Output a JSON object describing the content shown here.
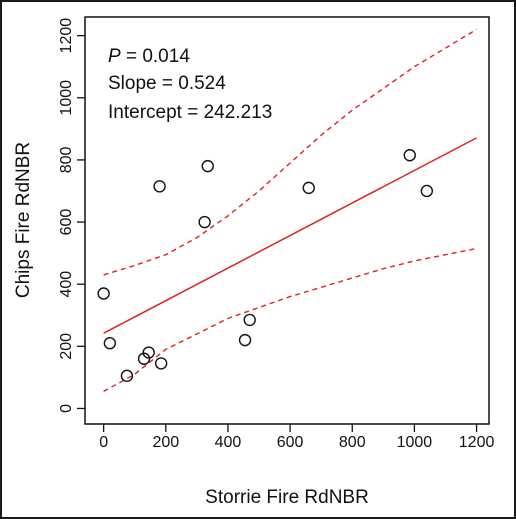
{
  "chart_data": {
    "type": "scatter",
    "xlabel": "Storrie Fire RdNBR",
    "ylabel": "Chips Fire RdNBR",
    "xlim": [
      -60,
      1240
    ],
    "ylim": [
      -50,
      1260
    ],
    "xticks": [
      0,
      200,
      400,
      600,
      800,
      1000,
      1200
    ],
    "yticks": [
      0,
      200,
      400,
      600,
      800,
      1000,
      1200
    ],
    "points": [
      {
        "x": 0,
        "y": 370
      },
      {
        "x": 20,
        "y": 210
      },
      {
        "x": 75,
        "y": 105
      },
      {
        "x": 130,
        "y": 160
      },
      {
        "x": 145,
        "y": 180
      },
      {
        "x": 185,
        "y": 145
      },
      {
        "x": 180,
        "y": 715
      },
      {
        "x": 335,
        "y": 780
      },
      {
        "x": 325,
        "y": 600
      },
      {
        "x": 455,
        "y": 220
      },
      {
        "x": 470,
        "y": 285
      },
      {
        "x": 660,
        "y": 710
      },
      {
        "x": 985,
        "y": 815
      },
      {
        "x": 1040,
        "y": 700
      }
    ],
    "fit": {
      "slope": 0.524,
      "intercept": 242.213,
      "x_range": [
        0,
        1200
      ]
    },
    "ci_upper": [
      [
        0,
        430
      ],
      [
        100,
        460
      ],
      [
        200,
        495
      ],
      [
        300,
        550
      ],
      [
        400,
        620
      ],
      [
        500,
        700
      ],
      [
        600,
        790
      ],
      [
        700,
        880
      ],
      [
        800,
        960
      ],
      [
        900,
        1030
      ],
      [
        1000,
        1100
      ],
      [
        1100,
        1160
      ],
      [
        1200,
        1220
      ]
    ],
    "ci_lower": [
      [
        0,
        55
      ],
      [
        100,
        110
      ],
      [
        200,
        190
      ],
      [
        300,
        240
      ],
      [
        400,
        290
      ],
      [
        500,
        325
      ],
      [
        600,
        360
      ],
      [
        700,
        390
      ],
      [
        800,
        420
      ],
      [
        900,
        450
      ],
      [
        1000,
        475
      ],
      [
        1100,
        495
      ],
      [
        1200,
        515
      ]
    ],
    "annotations": {
      "p_label": "P",
      "p_value": " = 0.014",
      "slope": "Slope = 0.524",
      "intercept": "Intercept = 242.213"
    },
    "colors": {
      "fit": "#e02020",
      "ci": "#e02020",
      "points": "#111111",
      "axis": "#111111"
    },
    "grid": false
  }
}
